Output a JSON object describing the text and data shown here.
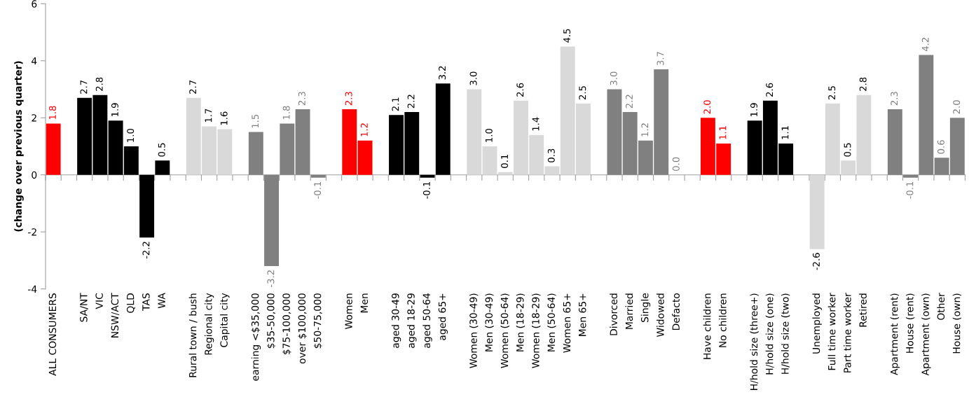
{
  "chart_data": {
    "type": "bar",
    "ylabel": "(change over previous quarter)",
    "categories": [
      "ALL CONSUMERS",
      null,
      "SA/NT",
      "VIC",
      "NSW/ACT",
      "QLD",
      "TAS",
      "WA",
      null,
      "Rural town / bush",
      "Regional city",
      "Capital city",
      null,
      "earning <$35,000",
      "$35-50,000",
      "$75-100,000",
      "over $100,000",
      "$50-75,000",
      null,
      "Women",
      "Men",
      null,
      "aged 30-49",
      "aged 18-29",
      "aged 50-64",
      "aged 65+",
      null,
      "Women (30-49)",
      "Men (30-49)",
      "Women (50-64)",
      "Men (18-29)",
      "Women (18-29)",
      "Men (50-64)",
      "Women 65+",
      "Men 65+",
      null,
      "Divorced",
      "Married",
      "Single",
      "Widowed",
      "Defacto",
      null,
      "Have children",
      "No children",
      null,
      "H/hold size (three+)",
      "H/hold size (one)",
      "H/hold size (two)",
      null,
      "Unemployed",
      "Full time worker",
      "Part time worker",
      "Retired",
      null,
      "Apartment (rent)",
      "House (rent)",
      "Apartment (own)",
      "Other",
      "House (own)"
    ],
    "values": [
      1.8,
      null,
      2.7,
      2.8,
      1.9,
      1.0,
      -2.2,
      0.5,
      null,
      2.7,
      1.7,
      1.6,
      null,
      1.5,
      -3.2,
      1.8,
      2.3,
      -0.1,
      null,
      2.3,
      1.2,
      null,
      2.1,
      2.2,
      -0.1,
      3.2,
      null,
      3.0,
      1.0,
      0.1,
      2.6,
      1.4,
      0.3,
      4.5,
      2.5,
      null,
      3.0,
      2.2,
      1.2,
      3.7,
      0.0,
      null,
      2.0,
      1.1,
      null,
      1.9,
      2.6,
      1.1,
      null,
      -2.6,
      2.5,
      0.5,
      2.8,
      null,
      2.3,
      -0.1,
      4.2,
      0.6,
      2.0
    ],
    "value_labels": [
      "1.8",
      null,
      "2.7",
      "2.8",
      "1.9",
      "1.0",
      "-2.2",
      "0.5",
      null,
      "2.7",
      "1.7",
      "1.6",
      null,
      "1.5",
      "-3.2",
      "1.8",
      "2.3",
      "-0.1",
      null,
      "2.3",
      "1.2",
      null,
      "2.1",
      "2.2",
      "-0.1",
      "3.2",
      null,
      "3.0",
      "1.0",
      "0.1",
      "2.6",
      "1.4",
      "0.3",
      "4.5",
      "2.5",
      null,
      "3.0",
      "2.2",
      "1.2",
      "3.7",
      "0.0",
      null,
      "2.0",
      "1.1",
      null,
      "1.9",
      "2.6",
      "1.1",
      null,
      "-2.6",
      "2.5",
      "0.5",
      "2.8",
      null,
      "2.3",
      "-0.1",
      "4.2",
      "0.6",
      "2.0"
    ],
    "colors": [
      "#ff0000",
      null,
      "#000000",
      "#000000",
      "#000000",
      "#000000",
      "#000000",
      "#000000",
      null,
      "#d9d9d9",
      "#d9d9d9",
      "#d9d9d9",
      null,
      "#808080",
      "#808080",
      "#808080",
      "#808080",
      "#808080",
      null,
      "#ff0000",
      "#ff0000",
      null,
      "#000000",
      "#000000",
      "#000000",
      "#000000",
      null,
      "#d9d9d9",
      "#d9d9d9",
      "#d9d9d9",
      "#d9d9d9",
      "#d9d9d9",
      "#d9d9d9",
      "#d9d9d9",
      "#d9d9d9",
      null,
      "#808080",
      "#808080",
      "#808080",
      "#808080",
      "#808080",
      null,
      "#ff0000",
      "#ff0000",
      null,
      "#000000",
      "#000000",
      "#000000",
      null,
      "#d9d9d9",
      "#d9d9d9",
      "#d9d9d9",
      "#d9d9d9",
      null,
      "#808080",
      "#808080",
      "#808080",
      "#808080",
      "#808080"
    ],
    "ylim": [
      -4,
      6
    ],
    "yticks": [
      -4,
      -2,
      0,
      2,
      4,
      6
    ],
    "legend": false
  }
}
